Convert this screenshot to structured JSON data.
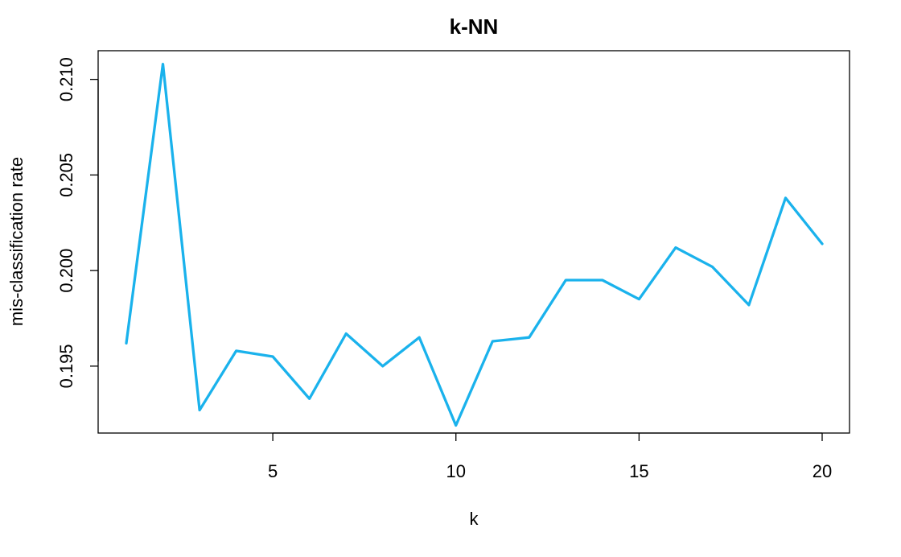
{
  "chart_data": {
    "type": "line",
    "title": "k-NN",
    "xlabel": "k",
    "ylabel": "mis-classification rate",
    "xlim": [
      1,
      20
    ],
    "ylim": [
      0.1915,
      0.2115
    ],
    "x_ticks": [
      5,
      10,
      15,
      20
    ],
    "x_tick_labels": [
      "5",
      "10",
      "15",
      "20"
    ],
    "y_ticks": [
      0.195,
      0.2,
      0.205,
      0.21
    ],
    "y_tick_labels": [
      "0.195",
      "0.200",
      "0.205",
      "0.210"
    ],
    "grid": false,
    "series": [
      {
        "name": "mis-classification rate",
        "color": "#1ab2ec",
        "x": [
          1,
          2,
          3,
          4,
          5,
          6,
          7,
          8,
          9,
          10,
          11,
          12,
          13,
          14,
          15,
          16,
          17,
          18,
          19,
          20
        ],
        "values": [
          0.1962,
          0.2108,
          0.1927,
          0.1958,
          0.1955,
          0.1933,
          0.1967,
          0.195,
          0.1965,
          0.1919,
          0.1963,
          0.1965,
          0.1995,
          0.1995,
          0.1985,
          0.2012,
          0.2002,
          0.1982,
          0.2038,
          0.2014
        ]
      }
    ]
  }
}
